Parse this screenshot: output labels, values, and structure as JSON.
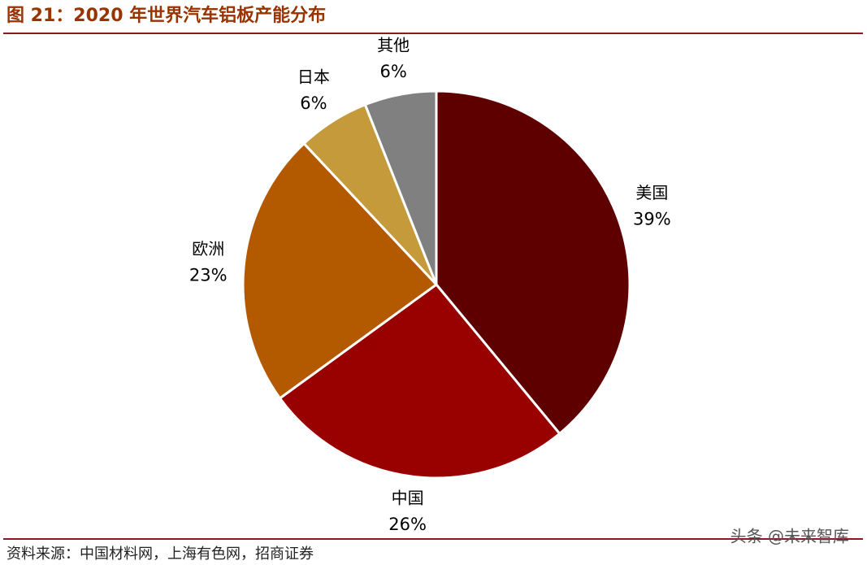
{
  "chart_data": {
    "type": "pie",
    "title": "图 21：2020 年世界汽车铝板产能分布",
    "categories": [
      "美国",
      "中国",
      "欧洲",
      "日本",
      "其他"
    ],
    "values": [
      39,
      26,
      23,
      6,
      6
    ],
    "value_labels": [
      "39%",
      "26%",
      "23%",
      "6%",
      "6%"
    ],
    "colors": [
      "#5e0000",
      "#990000",
      "#b35900",
      "#c49a3a",
      "#808080"
    ],
    "source": "资料来源：中国材料网，上海有色网，招商证券",
    "watermark": "头条 @未来智库"
  }
}
